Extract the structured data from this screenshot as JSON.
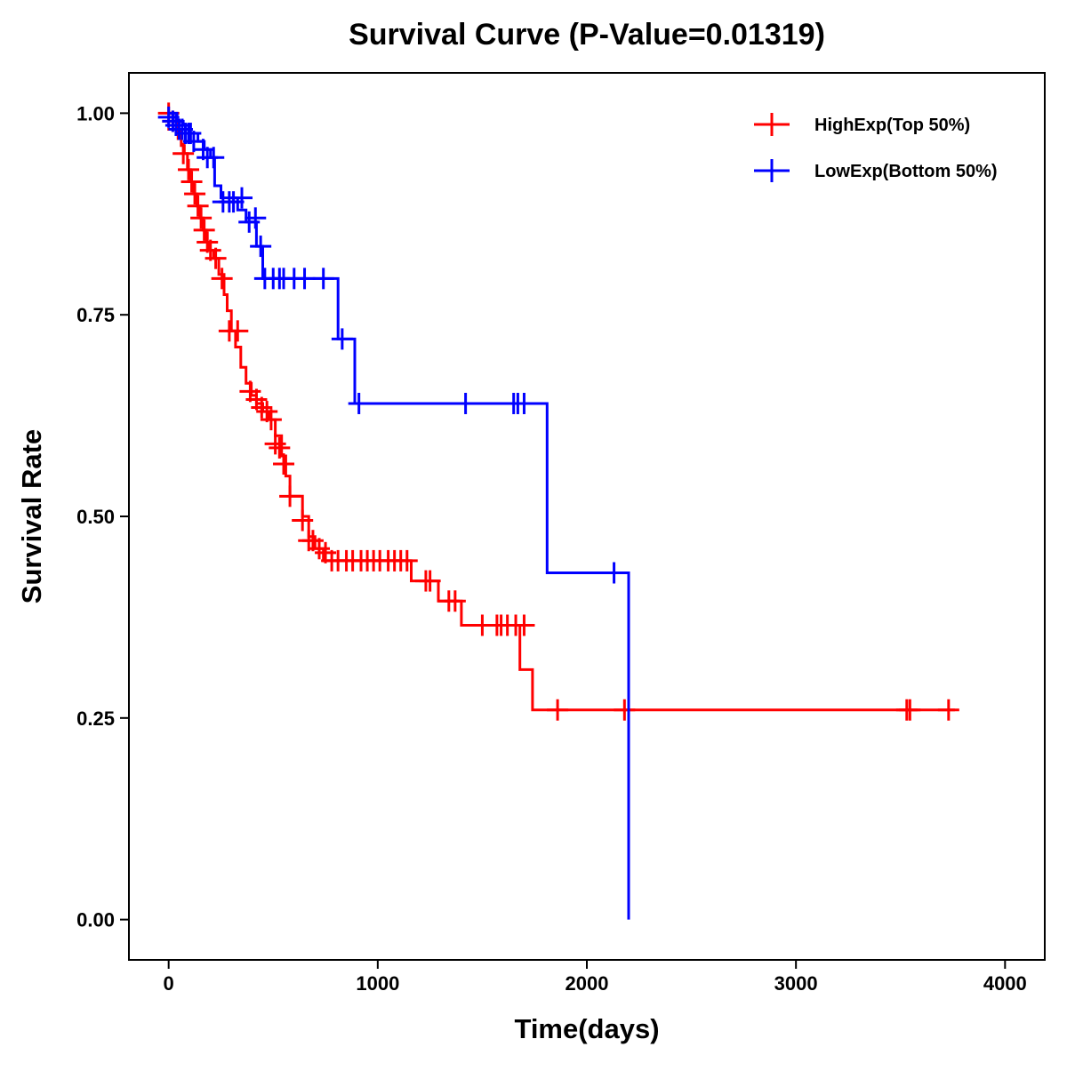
{
  "chart_data": {
    "type": "line",
    "title": "Survival Curve (P-Value=0.01319)",
    "xlabel": "Time(days)",
    "ylabel": "Survival Rate",
    "xlim": [
      -190,
      4190
    ],
    "ylim": [
      -0.05,
      1.05
    ],
    "x_ticks": [
      0,
      1000,
      2000,
      3000,
      4000
    ],
    "x_tick_labels": [
      "0",
      "1000",
      "2000",
      "3000",
      "4000"
    ],
    "y_ticks": [
      0,
      0.25,
      0.5,
      0.75,
      1.0
    ],
    "y_tick_labels": [
      "0.00",
      "0.25",
      "0.50",
      "0.75",
      "1.00"
    ],
    "legend_position": "top-right",
    "series": [
      {
        "name": "HighExp(Top 50%)",
        "color": "#ff0000",
        "steps": [
          [
            0,
            1.0
          ],
          [
            20,
            0.99
          ],
          [
            45,
            0.98
          ],
          [
            60,
            0.96
          ],
          [
            75,
            0.95
          ],
          [
            90,
            0.93
          ],
          [
            105,
            0.915
          ],
          [
            120,
            0.9
          ],
          [
            135,
            0.885
          ],
          [
            150,
            0.87
          ],
          [
            165,
            0.855
          ],
          [
            180,
            0.84
          ],
          [
            195,
            0.83
          ],
          [
            215,
            0.82
          ],
          [
            240,
            0.8
          ],
          [
            265,
            0.775
          ],
          [
            280,
            0.755
          ],
          [
            300,
            0.73
          ],
          [
            320,
            0.71
          ],
          [
            345,
            0.685
          ],
          [
            370,
            0.665
          ],
          [
            395,
            0.65
          ],
          [
            420,
            0.64
          ],
          [
            450,
            0.63
          ],
          [
            480,
            0.62
          ],
          [
            510,
            0.6
          ],
          [
            540,
            0.575
          ],
          [
            560,
            0.55
          ],
          [
            580,
            0.525
          ],
          [
            640,
            0.5
          ],
          [
            670,
            0.475
          ],
          [
            700,
            0.46
          ],
          [
            740,
            0.445
          ],
          [
            1160,
            0.42
          ],
          [
            1290,
            0.395
          ],
          [
            1400,
            0.365
          ],
          [
            1680,
            0.31
          ],
          [
            1740,
            0.26
          ],
          [
            3760,
            0.26
          ]
        ],
        "censors": [
          [
            0,
            1.0
          ],
          [
            20,
            0.99
          ],
          [
            45,
            0.98
          ],
          [
            70,
            0.95
          ],
          [
            95,
            0.93
          ],
          [
            110,
            0.915
          ],
          [
            125,
            0.9
          ],
          [
            140,
            0.885
          ],
          [
            155,
            0.87
          ],
          [
            170,
            0.855
          ],
          [
            185,
            0.84
          ],
          [
            200,
            0.83
          ],
          [
            225,
            0.82
          ],
          [
            255,
            0.795
          ],
          [
            290,
            0.73
          ],
          [
            330,
            0.73
          ],
          [
            390,
            0.655
          ],
          [
            420,
            0.645
          ],
          [
            445,
            0.635
          ],
          [
            470,
            0.63
          ],
          [
            490,
            0.62
          ],
          [
            510,
            0.59
          ],
          [
            530,
            0.585
          ],
          [
            550,
            0.565
          ],
          [
            580,
            0.525
          ],
          [
            640,
            0.495
          ],
          [
            670,
            0.47
          ],
          [
            690,
            0.47
          ],
          [
            720,
            0.46
          ],
          [
            750,
            0.455
          ],
          [
            780,
            0.445
          ],
          [
            810,
            0.445
          ],
          [
            850,
            0.445
          ],
          [
            880,
            0.445
          ],
          [
            920,
            0.445
          ],
          [
            950,
            0.445
          ],
          [
            980,
            0.445
          ],
          [
            1010,
            0.445
          ],
          [
            1050,
            0.445
          ],
          [
            1080,
            0.445
          ],
          [
            1110,
            0.445
          ],
          [
            1140,
            0.445
          ],
          [
            1230,
            0.42
          ],
          [
            1250,
            0.42
          ],
          [
            1340,
            0.395
          ],
          [
            1370,
            0.395
          ],
          [
            1500,
            0.365
          ],
          [
            1570,
            0.365
          ],
          [
            1590,
            0.365
          ],
          [
            1620,
            0.365
          ],
          [
            1660,
            0.365
          ],
          [
            1700,
            0.365
          ],
          [
            1860,
            0.26
          ],
          [
            2180,
            0.26
          ],
          [
            3530,
            0.26
          ],
          [
            3545,
            0.26
          ],
          [
            3730,
            0.26
          ]
        ]
      },
      {
        "name": "LowExp(Bottom 50%)",
        "color": "#0000ff",
        "steps": [
          [
            0,
            1.0
          ],
          [
            40,
            0.99
          ],
          [
            70,
            0.985
          ],
          [
            100,
            0.975
          ],
          [
            140,
            0.965
          ],
          [
            170,
            0.955
          ],
          [
            200,
            0.945
          ],
          [
            220,
            0.91
          ],
          [
            250,
            0.895
          ],
          [
            330,
            0.88
          ],
          [
            370,
            0.865
          ],
          [
            420,
            0.835
          ],
          [
            450,
            0.795
          ],
          [
            810,
            0.72
          ],
          [
            890,
            0.64
          ],
          [
            1810,
            0.43
          ],
          [
            2200,
            0.43
          ],
          [
            2200,
            0.0
          ]
        ],
        "censors": [
          [
            0,
            0.995
          ],
          [
            20,
            0.99
          ],
          [
            35,
            0.985
          ],
          [
            50,
            0.98
          ],
          [
            65,
            0.98
          ],
          [
            80,
            0.975
          ],
          [
            95,
            0.975
          ],
          [
            105,
            0.975
          ],
          [
            120,
            0.965
          ],
          [
            165,
            0.955
          ],
          [
            185,
            0.945
          ],
          [
            215,
            0.945
          ],
          [
            260,
            0.89
          ],
          [
            290,
            0.89
          ],
          [
            310,
            0.89
          ],
          [
            350,
            0.895
          ],
          [
            385,
            0.865
          ],
          [
            415,
            0.87
          ],
          [
            440,
            0.835
          ],
          [
            460,
            0.795
          ],
          [
            500,
            0.795
          ],
          [
            530,
            0.795
          ],
          [
            550,
            0.795
          ],
          [
            600,
            0.795
          ],
          [
            650,
            0.795
          ],
          [
            740,
            0.795
          ],
          [
            830,
            0.72
          ],
          [
            910,
            0.64
          ],
          [
            1420,
            0.64
          ],
          [
            1650,
            0.64
          ],
          [
            1670,
            0.64
          ],
          [
            1700,
            0.64
          ],
          [
            2130,
            0.43
          ]
        ]
      }
    ]
  }
}
